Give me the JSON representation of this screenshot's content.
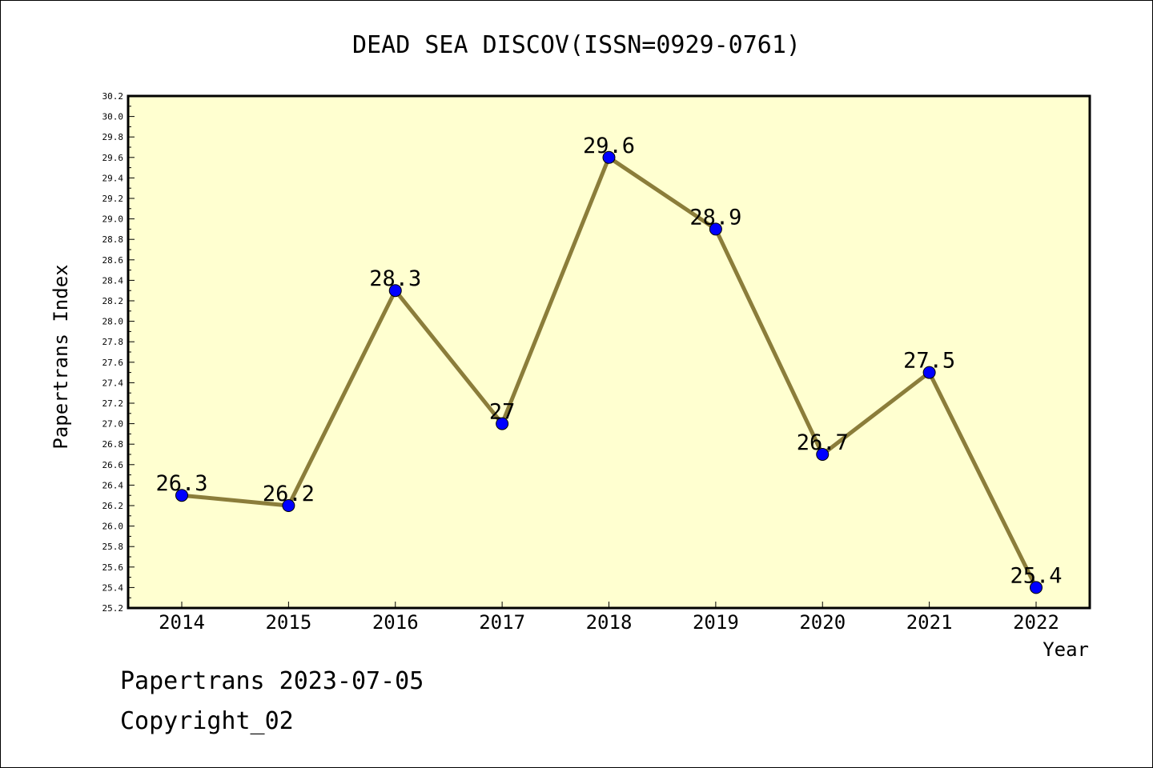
{
  "chart_data": {
    "type": "line",
    "title": "DEAD SEA DISCOV(ISSN=0929-0761)",
    "xlabel": "Year",
    "ylabel": "Papertrans Index",
    "categories": [
      "2014",
      "2015",
      "2016",
      "2017",
      "2018",
      "2019",
      "2020",
      "2021",
      "2022"
    ],
    "series": [
      {
        "values": [
          26.3,
          26.2,
          28.3,
          27,
          29.6,
          28.9,
          26.7,
          27.5,
          25.4
        ],
        "labels": [
          "26.3",
          "26.2",
          "28.3",
          "27",
          "29.6",
          "28.9",
          "26.7",
          "27.5",
          "25.4"
        ]
      }
    ],
    "ylim": [
      25.2,
      30.2
    ],
    "ytick_step": 0.2,
    "yticks": [
      "25.2",
      "25.4",
      "25.6",
      "25.8",
      "26.0",
      "26.2",
      "26.4",
      "26.6",
      "26.8",
      "27.0",
      "27.2",
      "27.4",
      "27.6",
      "27.8",
      "28.0",
      "28.2",
      "28.4",
      "28.6",
      "28.8",
      "29.0",
      "29.2",
      "29.4",
      "29.6",
      "29.8",
      "30.0",
      "30.2"
    ],
    "grid": false,
    "colors": {
      "plot_background": "#ffffd0",
      "line": "#8b7d3a",
      "marker": "#0000ff",
      "axis": "#000000"
    }
  },
  "footer": {
    "line1": "Papertrans 2023-07-05",
    "line2": "Copyright_02"
  }
}
